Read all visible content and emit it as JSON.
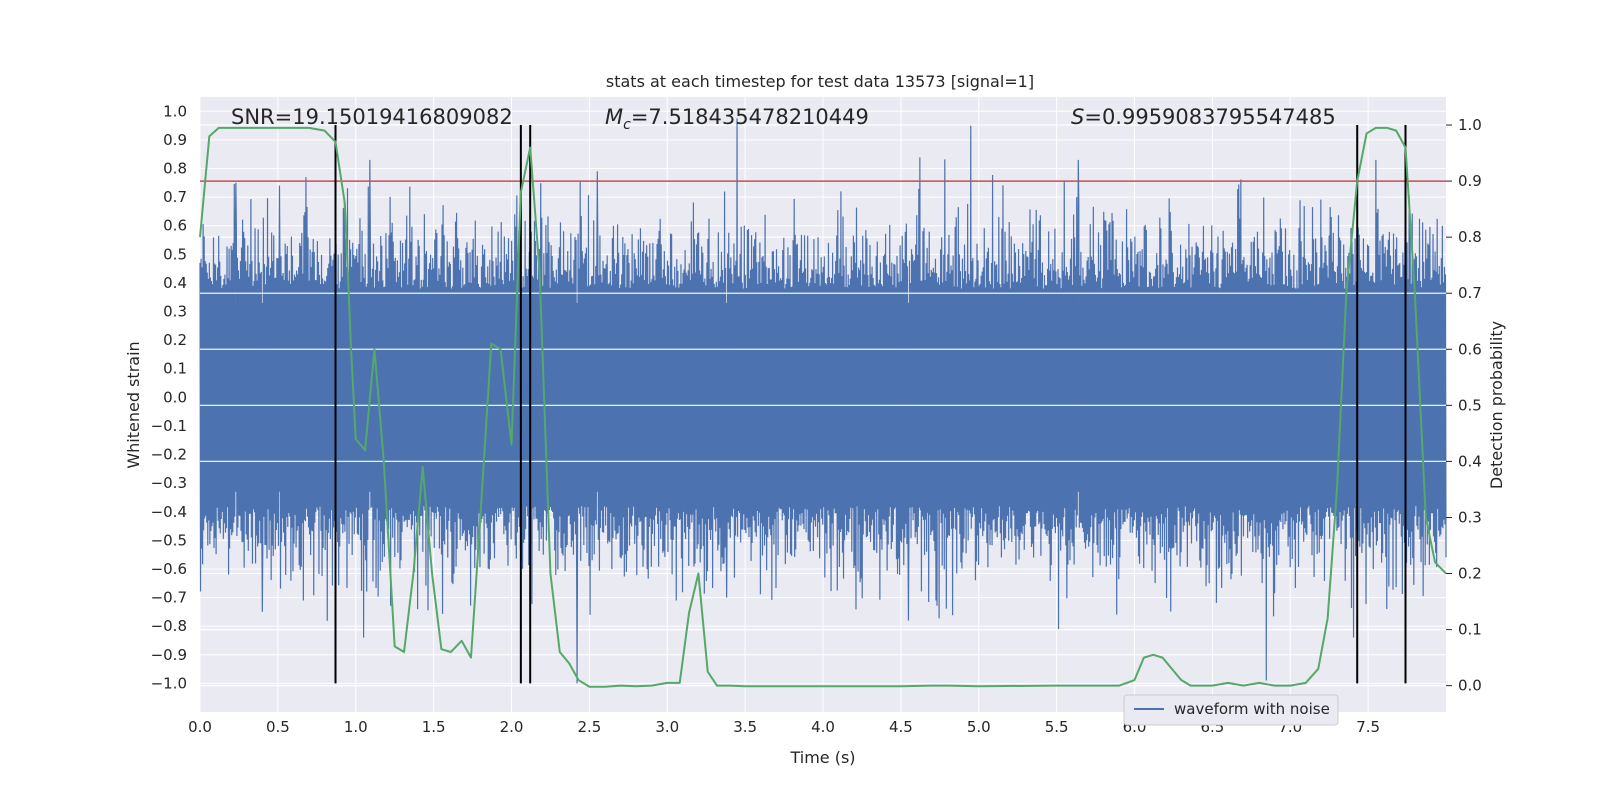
{
  "chart_data": {
    "type": "line",
    "title": "stats at each timestep for test data 13573 [signal=1]",
    "xlabel": "Time (s)",
    "ylabel": "Whitened strain",
    "y2label": "Detection probability",
    "xlim": [
      0.0,
      8.0
    ],
    "ylim": [
      -1.1,
      1.05
    ],
    "y2lim": [
      -0.047,
      1.05
    ],
    "xticks": [
      "0.0",
      "0.5",
      "1.0",
      "1.5",
      "2.0",
      "2.5",
      "3.0",
      "3.5",
      "4.0",
      "4.5",
      "5.0",
      "5.5",
      "6.0",
      "6.5",
      "7.0",
      "7.5"
    ],
    "yticks": [
      "1.0",
      "0.9",
      "0.8",
      "0.7",
      "0.6",
      "0.5",
      "0.4",
      "0.3",
      "0.2",
      "0.1",
      "0.0",
      "-0.1",
      "-0.2",
      "-0.3",
      "-0.4",
      "-0.5",
      "-0.6",
      "-0.7",
      "-0.8",
      "-0.9",
      "-1.0"
    ],
    "y2ticks": [
      "1.0",
      "0.9",
      "0.8",
      "0.7",
      "0.6",
      "0.5",
      "0.4",
      "0.3",
      "0.2",
      "0.1",
      "0.0"
    ],
    "annotations": {
      "snr": "SNR=19.15019416809082",
      "mc_symbol": "M",
      "mc_sub": "c",
      "mc_value": "=7.518435478210449",
      "s_symbol": "S",
      "s_value": "=0.9959083795547485"
    },
    "legend": {
      "label": "waveform with noise",
      "position": "lower-right"
    },
    "threshold": {
      "value": 0.9,
      "axis": "right",
      "color": "#c44e52"
    },
    "vertical_lines": [
      0.87,
      2.06,
      2.12,
      7.43,
      7.74
    ],
    "series": [
      {
        "name": "waveform with noise",
        "axis": "left",
        "color": "#4c72b0",
        "x_range": [
          0.0,
          8.0
        ],
        "samples": 2400,
        "core_amplitude": 0.38,
        "spikes": [
          {
            "x": 1.09,
            "y": 0.83
          },
          {
            "x": 4.95,
            "y": 0.95
          },
          {
            "x": 5.64,
            "y": 0.83
          },
          {
            "x": 7.55,
            "y": 0.83
          },
          {
            "x": 0.23,
            "y": 0.75
          },
          {
            "x": 0.51,
            "y": 0.74
          },
          {
            "x": 0.68,
            "y": 0.77
          },
          {
            "x": 2.55,
            "y": 0.79
          },
          {
            "x": 1.05,
            "y": -0.84
          },
          {
            "x": 2.42,
            "y": -1.0
          },
          {
            "x": 4.55,
            "y": -0.78
          },
          {
            "x": 0.4,
            "y": -0.75
          },
          {
            "x": 7.62,
            "y": -0.74
          },
          {
            "x": 3.38,
            "y": -0.7
          },
          {
            "x": 6.48,
            "y": -0.65
          }
        ]
      },
      {
        "name": "detection probability",
        "axis": "right",
        "color": "#55a868",
        "x": [
          0.0,
          0.06,
          0.12,
          0.2,
          0.3,
          0.4,
          0.5,
          0.6,
          0.7,
          0.8,
          0.87,
          0.93,
          0.97,
          1.0,
          1.06,
          1.12,
          1.18,
          1.25,
          1.31,
          1.37,
          1.43,
          1.49,
          1.55,
          1.61,
          1.68,
          1.74,
          1.8,
          1.87,
          1.93,
          2.0,
          2.06,
          2.12,
          2.18,
          2.25,
          2.31,
          2.37,
          2.43,
          2.5,
          2.6,
          2.7,
          2.8,
          2.9,
          3.0,
          3.08,
          3.14,
          3.2,
          3.26,
          3.32,
          3.4,
          3.5,
          3.7,
          4.0,
          4.5,
          4.7,
          4.8,
          5.0,
          5.5,
          5.8,
          5.9,
          6.0,
          6.06,
          6.12,
          6.18,
          6.24,
          6.3,
          6.36,
          6.42,
          6.5,
          6.6,
          6.7,
          6.8,
          6.9,
          7.0,
          7.1,
          7.18,
          7.24,
          7.3,
          7.36,
          7.43,
          7.49,
          7.55,
          7.62,
          7.68,
          7.74,
          7.8,
          7.87,
          7.93,
          8.0
        ],
        "y": [
          0.8,
          0.98,
          0.995,
          0.995,
          0.995,
          0.995,
          0.995,
          0.995,
          0.995,
          0.99,
          0.97,
          0.86,
          0.6,
          0.44,
          0.42,
          0.6,
          0.4,
          0.07,
          0.06,
          0.2,
          0.39,
          0.2,
          0.065,
          0.06,
          0.08,
          0.05,
          0.3,
          0.61,
          0.6,
          0.43,
          0.88,
          0.96,
          0.74,
          0.2,
          0.06,
          0.04,
          0.01,
          -0.002,
          -0.002,
          0.0,
          -0.001,
          0.0,
          0.005,
          0.005,
          0.13,
          0.2,
          0.025,
          0.0,
          0.0,
          -0.001,
          -0.001,
          -0.001,
          -0.001,
          0.0,
          0.0,
          -0.001,
          0.0,
          0.0,
          0.0,
          0.01,
          0.05,
          0.055,
          0.05,
          0.03,
          0.01,
          0.0,
          0.0,
          0.0,
          0.005,
          0.0,
          0.005,
          0.0,
          0.0,
          0.005,
          0.03,
          0.12,
          0.35,
          0.7,
          0.9,
          0.985,
          0.995,
          0.995,
          0.99,
          0.96,
          0.7,
          0.3,
          0.22,
          0.2
        ]
      }
    ]
  }
}
